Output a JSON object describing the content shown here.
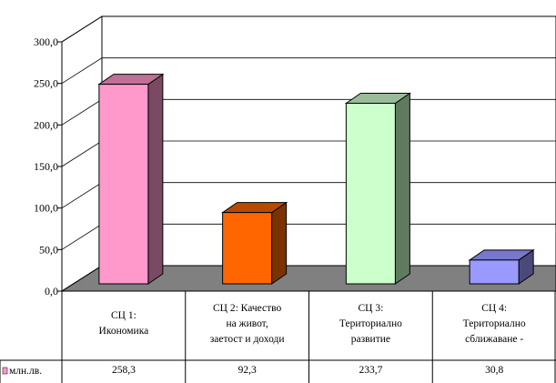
{
  "chart_data": {
    "type": "bar",
    "three_d": true,
    "ylim": [
      0,
      300
    ],
    "yticks": [
      "0,0",
      "50,0",
      "100,0",
      "150,0",
      "200,0",
      "250,0",
      "300,0"
    ],
    "grid": true,
    "categories": [
      [
        "СЦ 1:",
        "Икономика"
      ],
      [
        "СЦ 2: Качество",
        "на живот,",
        "заетост и доходи"
      ],
      [
        "СЦ 3:",
        "Териториално",
        "развитие"
      ],
      [
        "СЦ 4:",
        "Териториално",
        "сближаване -"
      ]
    ],
    "series": [
      {
        "name": "млн.лв.",
        "values": [
          258.3,
          92.3,
          233.7,
          30.8
        ],
        "value_labels": [
          "258,3",
          "92,3",
          "233,7",
          "30,8"
        ]
      }
    ],
    "colors": [
      {
        "front": "#ff99cc",
        "side": "#7a4a63",
        "top": "#c07095"
      },
      {
        "front": "#ff6600",
        "side": "#7a3300",
        "top": "#b84a00"
      },
      {
        "front": "#ccffcc",
        "side": "#5f7a5f",
        "top": "#99bb99"
      },
      {
        "front": "#9999ff",
        "side": "#4a4a7a",
        "top": "#7777cc"
      }
    ],
    "floor_color": "#808080"
  }
}
